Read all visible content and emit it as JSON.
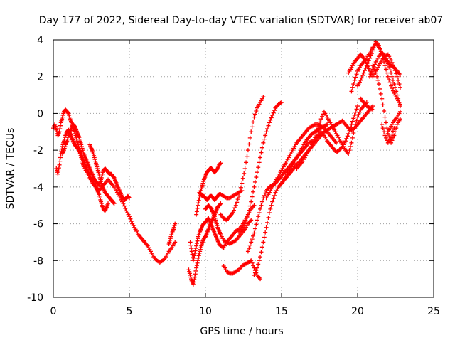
{
  "chart_data": {
    "type": "scatter",
    "title": "Day 177 of 2022, Sidereal Day-to-day VTEC variation (SDTVAR) for receiver ab07",
    "xlabel": "GPS time / hours",
    "ylabel": "SDTVAR / TECUs",
    "xlim": [
      0,
      25
    ],
    "ylim": [
      -10,
      4
    ],
    "xticks": [
      0,
      5,
      10,
      15,
      20,
      25
    ],
    "yticks": [
      -10,
      -8,
      -6,
      -4,
      -2,
      0,
      2,
      4
    ],
    "grid": true,
    "marker": "+",
    "color": "#ff0000",
    "series": [
      {
        "x": [
          0.0,
          0.1,
          0.2,
          0.3,
          0.4,
          0.5,
          0.6,
          0.7,
          0.8,
          0.9,
          1.0,
          1.1,
          1.2,
          1.3,
          1.4,
          1.5,
          1.6,
          1.7,
          1.8,
          1.9,
          2.0,
          2.2,
          2.4,
          2.6,
          2.8,
          3.0,
          3.2,
          3.4,
          3.6,
          3.8,
          4.0,
          4.2,
          4.4,
          4.6,
          4.8,
          5.0,
          5.2,
          5.4,
          5.6,
          5.8,
          6.0,
          6.2,
          6.4,
          6.6,
          6.8,
          7.0,
          7.2,
          7.4,
          7.6,
          7.8,
          8.0
        ],
        "y": [
          -0.8,
          -0.6,
          -0.9,
          -1.2,
          -1.0,
          -0.5,
          -0.2,
          0.1,
          0.2,
          0.1,
          0.0,
          -0.3,
          -0.5,
          -0.8,
          -1.0,
          -1.3,
          -1.6,
          -1.9,
          -2.3,
          -2.6,
          -2.9,
          -3.2,
          -3.5,
          -3.8,
          -4.0,
          -4.2,
          -4.0,
          -3.8,
          -3.6,
          -3.8,
          -4.0,
          -4.3,
          -4.6,
          -4.9,
          -5.3,
          -5.6,
          -6.0,
          -6.3,
          -6.6,
          -6.8,
          -7.0,
          -7.2,
          -7.5,
          -7.8,
          -8.0,
          -8.1,
          -8.0,
          -7.8,
          -7.5,
          -7.3,
          -7.0
        ]
      },
      {
        "x": [
          0.2,
          0.3,
          0.4,
          0.5,
          0.6,
          0.7,
          0.8,
          0.9,
          1.0,
          1.1,
          1.2,
          1.3,
          1.4,
          1.5,
          1.6,
          1.7,
          1.8,
          1.9,
          2.0,
          2.1,
          2.2,
          2.3,
          2.4,
          2.5,
          2.6,
          2.7,
          2.8,
          2.9,
          3.0,
          3.1,
          3.2,
          3.3,
          3.4,
          3.5,
          3.6
        ],
        "y": [
          -3.0,
          -3.3,
          -2.8,
          -2.2,
          -1.8,
          -1.5,
          -1.2,
          -1.0,
          -0.9,
          -1.1,
          -1.3,
          -1.5,
          -1.7,
          -1.8,
          -1.9,
          -2.0,
          -2.2,
          -2.4,
          -2.6,
          -2.8,
          -3.0,
          -3.2,
          -3.4,
          -3.6,
          -3.8,
          -3.9,
          -4.0,
          -4.2,
          -4.4,
          -4.7,
          -5.0,
          -5.2,
          -5.3,
          -5.1,
          -4.9
        ]
      },
      {
        "x": [
          0.6,
          0.7,
          0.8,
          0.9,
          1.0,
          1.1,
          1.2,
          1.3,
          1.4,
          1.5,
          1.6,
          1.7,
          1.8,
          1.9,
          2.0,
          2.1,
          2.2,
          2.3,
          2.4,
          2.5,
          2.6,
          2.7,
          2.8,
          2.9,
          3.0,
          3.1,
          3.2,
          3.3,
          3.4,
          3.5,
          3.6,
          3.7,
          3.8,
          3.9,
          4.0,
          4.1,
          4.2,
          4.3,
          4.4,
          4.5,
          4.6,
          4.7,
          4.8,
          4.9,
          5.0
        ],
        "y": [
          -2.2,
          -2.0,
          -1.7,
          -1.5,
          -1.2,
          -1.0,
          -0.8,
          -0.6,
          -0.7,
          -0.9,
          -1.1,
          -1.3,
          -1.6,
          -1.9,
          -2.2,
          -2.4,
          -2.6,
          -2.8,
          -3.0,
          -3.2,
          -3.4,
          -3.6,
          -3.7,
          -3.8,
          -3.9,
          -3.7,
          -3.4,
          -3.1,
          -3.0,
          -3.1,
          -3.2,
          -3.3,
          -3.3,
          -3.4,
          -3.5,
          -3.7,
          -3.9,
          -4.1,
          -4.3,
          -4.5,
          -4.6,
          -4.7,
          -4.6,
          -4.5,
          -4.6
        ]
      },
      {
        "x": [
          2.4,
          2.5,
          2.6,
          2.7,
          2.8,
          2.9,
          3.0,
          3.1,
          3.2,
          3.3,
          3.4,
          3.5,
          3.6,
          3.7,
          3.8,
          3.9,
          4.0
        ],
        "y": [
          -1.7,
          -1.9,
          -2.1,
          -2.4,
          -2.7,
          -3.0,
          -3.3,
          -3.6,
          -3.9,
          -4.1,
          -4.3,
          -4.4,
          -4.5,
          -4.6,
          -4.7,
          -4.8,
          -4.9
        ]
      },
      {
        "x": [
          7.6,
          7.7,
          7.8,
          7.9,
          8.0
        ],
        "y": [
          -7.1,
          -6.8,
          -6.5,
          -6.3,
          -6.0
        ]
      },
      {
        "x": [
          9.0,
          9.1,
          9.2,
          9.3,
          9.4,
          9.5,
          9.6,
          9.7,
          9.8,
          9.9,
          10.0,
          10.1,
          10.2,
          10.3,
          10.4,
          10.5,
          10.6,
          10.7,
          10.8,
          10.9,
          11.0,
          11.2,
          11.4,
          11.6,
          11.8,
          12.0,
          12.2,
          12.4,
          12.6,
          12.8,
          13.0,
          13.2
        ],
        "y": [
          -7.0,
          -7.5,
          -8.0,
          -7.6,
          -7.2,
          -6.8,
          -6.5,
          -6.3,
          -6.1,
          -6.0,
          -5.9,
          -5.8,
          -5.7,
          -5.9,
          -6.1,
          -6.3,
          -6.5,
          -6.7,
          -6.9,
          -7.1,
          -7.2,
          -7.3,
          -7.0,
          -6.8,
          -6.6,
          -6.4,
          -6.3,
          -6.1,
          -5.8,
          -5.5,
          -5.2,
          -5.0
        ]
      },
      {
        "x": [
          8.9,
          9.0,
          9.1,
          9.2,
          9.3,
          9.4,
          9.5,
          9.6,
          9.7,
          9.8,
          9.9,
          10.0,
          10.1,
          10.2,
          10.3,
          10.4,
          10.5,
          10.6,
          10.7,
          10.8,
          10.9,
          11.0
        ],
        "y": [
          -8.5,
          -8.8,
          -9.1,
          -9.3,
          -8.9,
          -8.4,
          -8.0,
          -7.6,
          -7.3,
          -7.0,
          -6.8,
          -6.7,
          -6.5,
          -6.3,
          -6.1,
          -5.9,
          -5.7,
          -5.5,
          -5.3,
          -5.1,
          -5.0,
          -4.9
        ]
      },
      {
        "x": [
          9.6,
          9.7,
          9.8,
          9.9,
          10.0,
          10.1,
          10.2,
          10.3,
          10.4,
          10.5,
          10.6,
          10.7,
          10.8,
          10.9,
          11.0,
          11.2,
          11.4,
          11.6,
          11.8,
          12.0,
          12.2,
          12.4
        ],
        "y": [
          -4.3,
          -4.4,
          -4.5,
          -4.5,
          -4.6,
          -4.7,
          -4.6,
          -4.5,
          -4.5,
          -4.6,
          -4.7,
          -4.6,
          -4.5,
          -4.4,
          -4.4,
          -4.5,
          -4.6,
          -4.6,
          -4.5,
          -4.4,
          -4.3,
          -4.2
        ]
      },
      {
        "x": [
          9.4,
          9.5,
          9.6,
          9.7,
          9.8,
          9.9,
          10.0,
          10.1,
          10.2,
          10.3,
          10.4,
          10.5,
          10.6,
          10.7,
          10.8,
          10.9,
          11.0
        ],
        "y": [
          -5.5,
          -5.0,
          -4.6,
          -4.2,
          -3.9,
          -3.6,
          -3.4,
          -3.2,
          -3.1,
          -3.0,
          -3.0,
          -3.1,
          -3.2,
          -3.1,
          -3.0,
          -2.8,
          -2.7
        ]
      },
      {
        "x": [
          10.0,
          10.1,
          10.2,
          10.3,
          10.4,
          10.5,
          10.6,
          10.7,
          10.8,
          10.9,
          11.0,
          11.2,
          11.4,
          11.6,
          11.8,
          12.0,
          12.2,
          12.4,
          12.6,
          12.8,
          13.0
        ],
        "y": [
          -5.2,
          -5.1,
          -5.0,
          -5.1,
          -5.2,
          -5.4,
          -5.6,
          -5.9,
          -6.2,
          -6.4,
          -6.6,
          -6.9,
          -7.0,
          -7.1,
          -7.0,
          -6.9,
          -6.7,
          -6.5,
          -6.3,
          -6.0,
          -5.8
        ]
      },
      {
        "x": [
          11.2,
          11.4,
          11.6,
          11.8,
          12.0,
          12.2,
          12.4,
          12.6,
          12.8,
          13.0,
          13.2,
          13.4,
          13.6
        ],
        "y": [
          -8.3,
          -8.6,
          -8.7,
          -8.7,
          -8.6,
          -8.5,
          -8.3,
          -8.2,
          -8.1,
          -8.0,
          -8.4,
          -8.8,
          -9.0
        ]
      },
      {
        "x": [
          11.0,
          11.2,
          11.4,
          11.6,
          11.8,
          12.0,
          12.2,
          12.4,
          12.6,
          12.8,
          13.0,
          13.2,
          13.4,
          13.6,
          13.8
        ],
        "y": [
          -5.5,
          -5.7,
          -5.8,
          -5.6,
          -5.4,
          -5.0,
          -4.5,
          -3.8,
          -3.0,
          -2.0,
          -1.0,
          -0.2,
          0.3,
          0.6,
          0.9
        ]
      },
      {
        "x": [
          12.2,
          12.4,
          12.6,
          12.8,
          13.0,
          13.2,
          13.4,
          13.6,
          13.8,
          14.0,
          14.2,
          14.4,
          14.6,
          14.8,
          15.0
        ],
        "y": [
          -6.5,
          -6.3,
          -6.0,
          -5.5,
          -4.8,
          -4.0,
          -3.2,
          -2.4,
          -1.6,
          -1.0,
          -0.5,
          -0.1,
          0.3,
          0.5,
          0.6
        ]
      },
      {
        "x": [
          12.8,
          13.0,
          13.2,
          13.4,
          13.6,
          13.8,
          14.0,
          14.2,
          14.4,
          14.6,
          14.8,
          15.0,
          15.2,
          15.4,
          15.6,
          15.8,
          16.0,
          16.2,
          16.4,
          16.6,
          16.8,
          17.0
        ],
        "y": [
          -7.5,
          -7.0,
          -6.5,
          -5.8,
          -5.2,
          -4.6,
          -4.2,
          -4.0,
          -3.9,
          -3.8,
          -3.6,
          -3.4,
          -3.2,
          -3.0,
          -2.8,
          -2.6,
          -2.4,
          -2.2,
          -2.0,
          -1.8,
          -1.6,
          -1.5
        ]
      },
      {
        "x": [
          13.2,
          13.4,
          13.6,
          13.8,
          14.0,
          14.2,
          14.4,
          14.6,
          14.8,
          15.0,
          15.2,
          15.4,
          15.6,
          15.8,
          16.0,
          16.2,
          16.4,
          16.6,
          16.8,
          17.0,
          17.2,
          17.4,
          17.6,
          17.8,
          18.0
        ],
        "y": [
          -8.8,
          -8.4,
          -7.8,
          -7.0,
          -6.2,
          -5.4,
          -4.8,
          -4.3,
          -4.0,
          -3.8,
          -3.5,
          -3.2,
          -3.0,
          -2.7,
          -2.4,
          -2.1,
          -1.8,
          -1.5,
          -1.3,
          -1.1,
          -1.0,
          -0.9,
          -0.8,
          -0.7,
          -0.6
        ]
      },
      {
        "x": [
          14.0,
          14.2,
          14.4,
          14.6,
          14.8,
          15.0,
          15.2,
          15.4,
          15.6,
          15.8,
          16.0,
          16.2,
          16.4,
          16.6,
          16.8,
          17.0,
          17.2,
          17.4,
          17.6,
          17.8,
          18.0,
          18.2,
          18.4,
          18.6
        ],
        "y": [
          -4.6,
          -4.3,
          -4.0,
          -3.7,
          -3.4,
          -3.1,
          -2.8,
          -2.5,
          -2.2,
          -1.9,
          -1.6,
          -1.4,
          -1.2,
          -1.0,
          -0.8,
          -0.7,
          -0.6,
          -0.6,
          -0.7,
          -0.8,
          -1.0,
          -1.2,
          -1.4,
          -1.6
        ]
      },
      {
        "x": [
          15.0,
          15.2,
          15.4,
          15.6,
          15.8,
          16.0,
          16.2,
          16.4,
          16.6,
          16.8,
          17.0,
          17.2,
          17.4,
          17.6,
          17.8,
          18.0,
          18.2,
          18.4,
          18.6,
          18.8,
          19.0,
          19.2,
          19.4,
          19.6,
          19.8,
          20.0,
          20.2,
          20.4,
          20.6,
          20.8,
          21.0
        ],
        "y": [
          -3.8,
          -3.6,
          -3.4,
          -3.2,
          -3.0,
          -2.8,
          -2.6,
          -2.4,
          -2.2,
          -2.0,
          -1.8,
          -1.6,
          -1.4,
          -1.2,
          -1.0,
          -0.9,
          -0.8,
          -0.7,
          -0.6,
          -0.5,
          -0.4,
          -0.6,
          -0.8,
          -0.9,
          -0.8,
          -0.6,
          -0.4,
          -0.2,
          0.0,
          0.2,
          0.4
        ]
      },
      {
        "x": [
          16.0,
          16.2,
          16.4,
          16.6,
          16.8,
          17.0,
          17.2,
          17.4,
          17.6,
          17.8,
          18.0,
          18.2,
          18.4,
          18.6,
          18.8,
          19.0,
          19.2,
          19.4,
          19.6,
          19.8,
          20.0
        ],
        "y": [
          -3.0,
          -2.8,
          -2.6,
          -2.3,
          -2.0,
          -1.7,
          -1.4,
          -1.2,
          -1.0,
          -1.2,
          -1.5,
          -1.7,
          -1.9,
          -2.1,
          -2.0,
          -1.8,
          -1.5,
          -1.1,
          -0.6,
          -0.1,
          0.4
        ]
      },
      {
        "x": [
          17.0,
          17.2,
          17.4,
          17.6,
          17.8,
          18.0,
          18.2,
          18.4,
          18.6,
          18.8,
          19.0,
          19.2,
          19.4,
          19.6,
          19.8,
          20.0,
          20.2,
          20.4,
          20.6
        ],
        "y": [
          -1.6,
          -1.3,
          -0.8,
          -0.3,
          0.1,
          -0.2,
          -0.5,
          -0.8,
          -1.1,
          -1.4,
          -1.7,
          -2.0,
          -2.2,
          -1.6,
          -0.8,
          -0.2,
          0.2,
          0.4,
          0.6
        ]
      },
      {
        "x": [
          19.6,
          19.8,
          20.0,
          20.2,
          20.4,
          20.6,
          20.8,
          21.0,
          21.2,
          21.4,
          21.6,
          21.8,
          22.0,
          22.2,
          22.4,
          22.6,
          22.8
        ],
        "y": [
          1.2,
          1.8,
          2.3,
          2.6,
          2.8,
          3.0,
          3.3,
          3.6,
          3.8,
          3.6,
          3.3,
          3.0,
          2.8,
          2.6,
          2.5,
          2.3,
          2.1
        ]
      },
      {
        "x": [
          19.4,
          19.6,
          19.8,
          20.0,
          20.2,
          20.4,
          20.6,
          20.8,
          21.0,
          21.2,
          21.4,
          21.6,
          21.8,
          22.0,
          22.2,
          22.4,
          22.6,
          22.8
        ],
        "y": [
          2.2,
          2.5,
          2.8,
          3.0,
          3.2,
          3.0,
          2.7,
          2.3,
          2.0,
          2.3,
          2.6,
          2.9,
          3.1,
          3.2,
          2.9,
          2.5,
          2.0,
          1.4
        ]
      },
      {
        "x": [
          20.0,
          20.2,
          20.4,
          20.6,
          20.8,
          21.0,
          21.2,
          21.4,
          21.6,
          21.8,
          22.0,
          22.2,
          22.4,
          22.6,
          22.8
        ],
        "y": [
          1.5,
          1.8,
          2.2,
          2.6,
          3.0,
          3.4,
          3.9,
          3.7,
          3.2,
          2.6,
          2.0,
          1.5,
          1.1,
          0.8,
          0.5
        ]
      },
      {
        "x": [
          20.8,
          21.0,
          21.2,
          21.4,
          21.6,
          21.8,
          22.0,
          22.2,
          22.4,
          22.6,
          22.8
        ],
        "y": [
          2.0,
          2.4,
          2.8,
          3.1,
          3.3,
          3.1,
          2.7,
          2.2,
          1.6,
          1.0,
          0.4
        ]
      },
      {
        "x": [
          21.0,
          21.2,
          21.4,
          21.6,
          21.8,
          22.0,
          22.2,
          22.4,
          22.6,
          22.8
        ],
        "y": [
          2.6,
          2.2,
          1.6,
          0.8,
          -0.2,
          -1.1,
          -1.6,
          -1.2,
          -0.6,
          -0.3
        ]
      },
      {
        "x": [
          21.6,
          21.8,
          22.0,
          22.2,
          22.4
        ],
        "y": [
          -0.6,
          -1.2,
          -1.6,
          -1.3,
          -0.8
        ]
      },
      {
        "x": [
          22.0,
          22.2,
          22.4,
          22.6,
          22.8
        ],
        "y": [
          -1.0,
          -0.7,
          -0.4,
          -0.2,
          0.1
        ]
      },
      {
        "x": [
          20.2,
          20.4,
          20.6,
          20.8,
          21.0
        ],
        "y": [
          0.8,
          0.6,
          0.4,
          0.3,
          0.2
        ]
      }
    ]
  }
}
